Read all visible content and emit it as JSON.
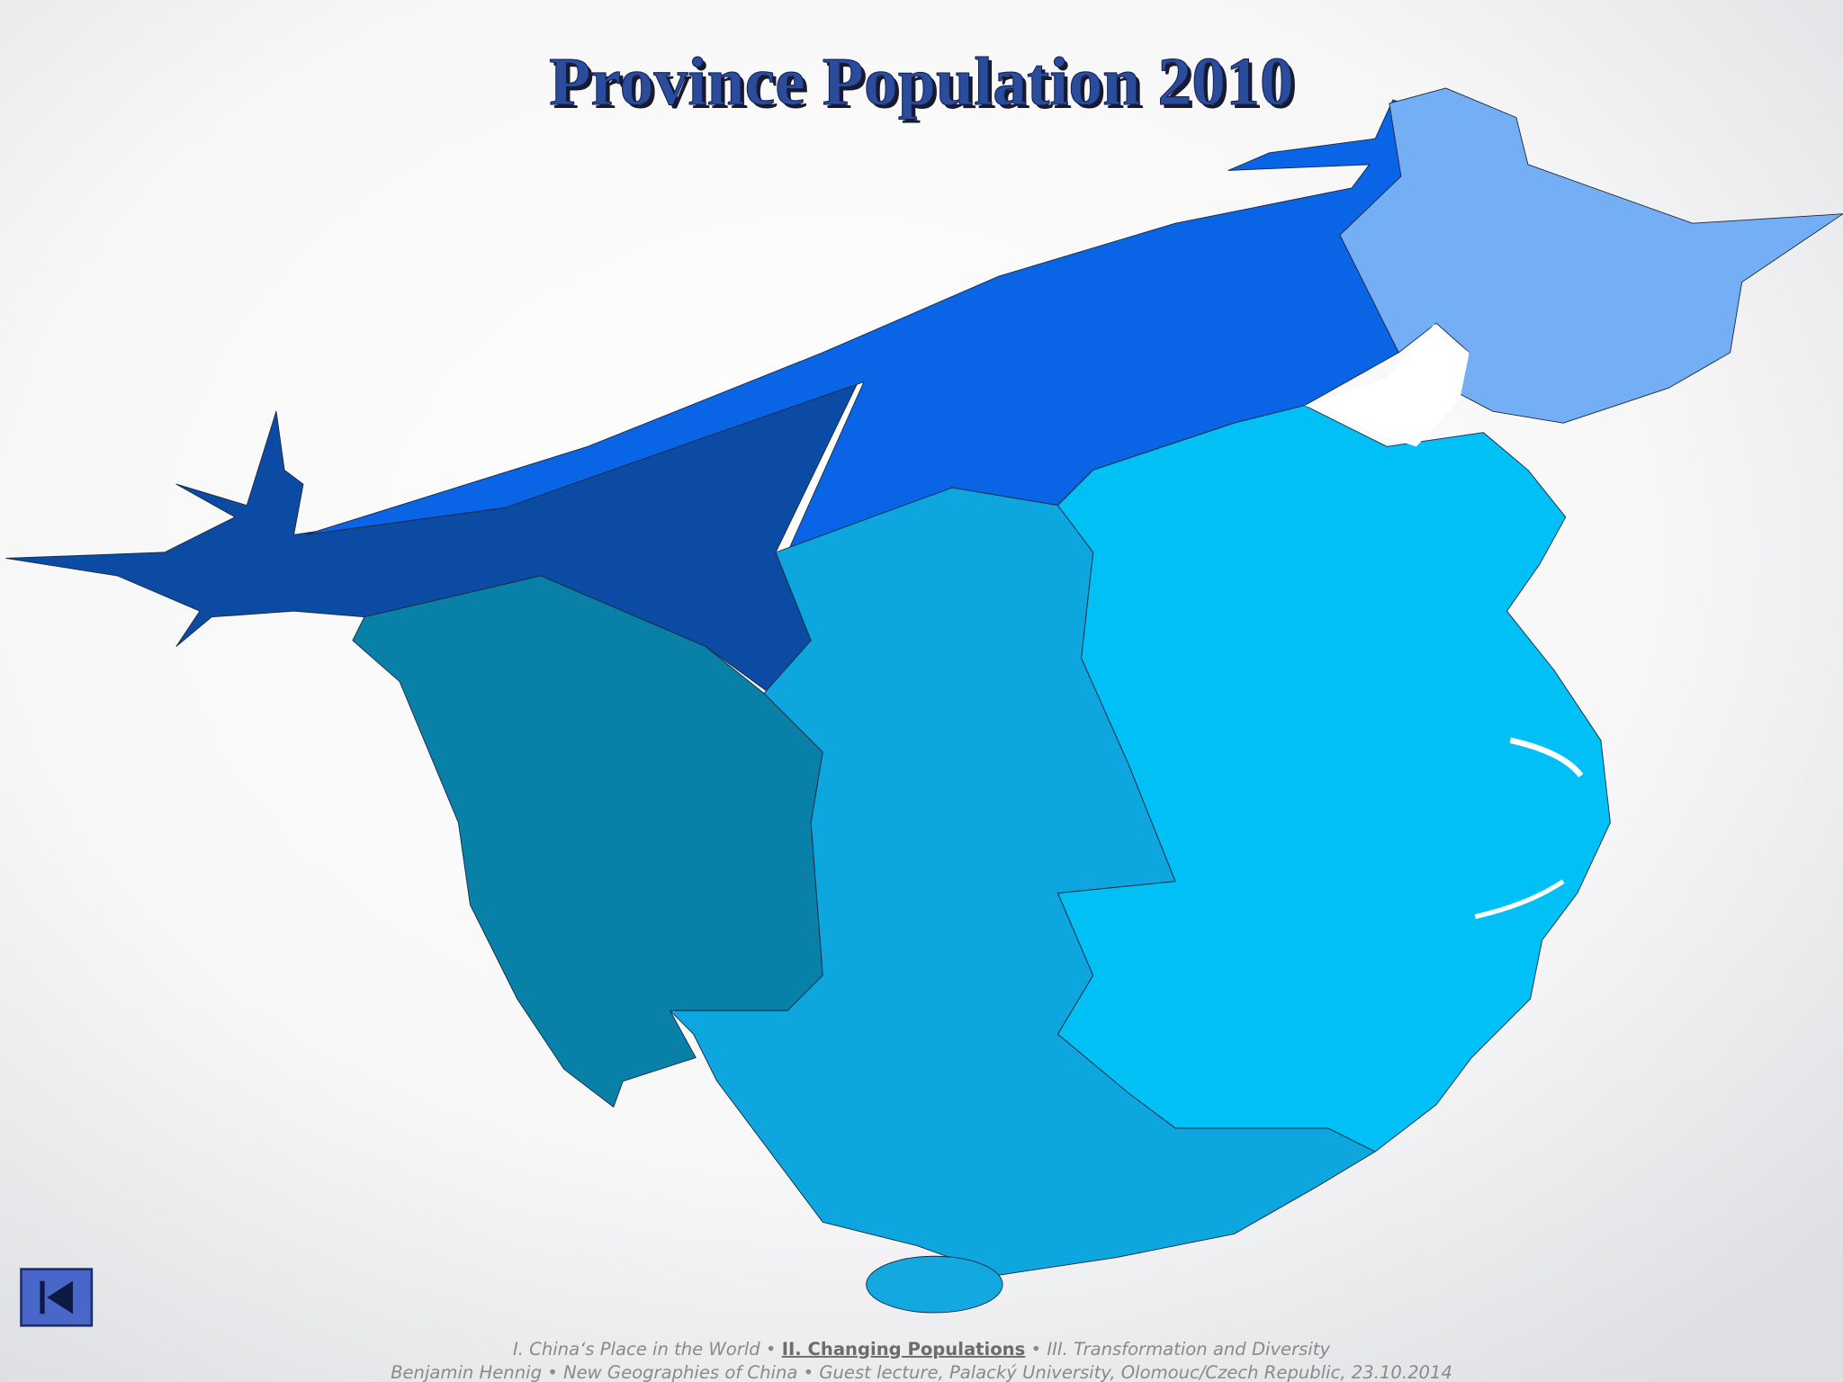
{
  "header": {
    "title": "Province Population 2010"
  },
  "footer": {
    "nav": [
      "I. China‘s Place in the World",
      "II. Changing Populations",
      "III. Transformation and Diversity"
    ],
    "separator": "•",
    "credit": "Benjamin Hennig • New Geographies of China • Guest lecture, Palacký University, Olomouc/Czech Republic, 23.10.2014"
  }
}
